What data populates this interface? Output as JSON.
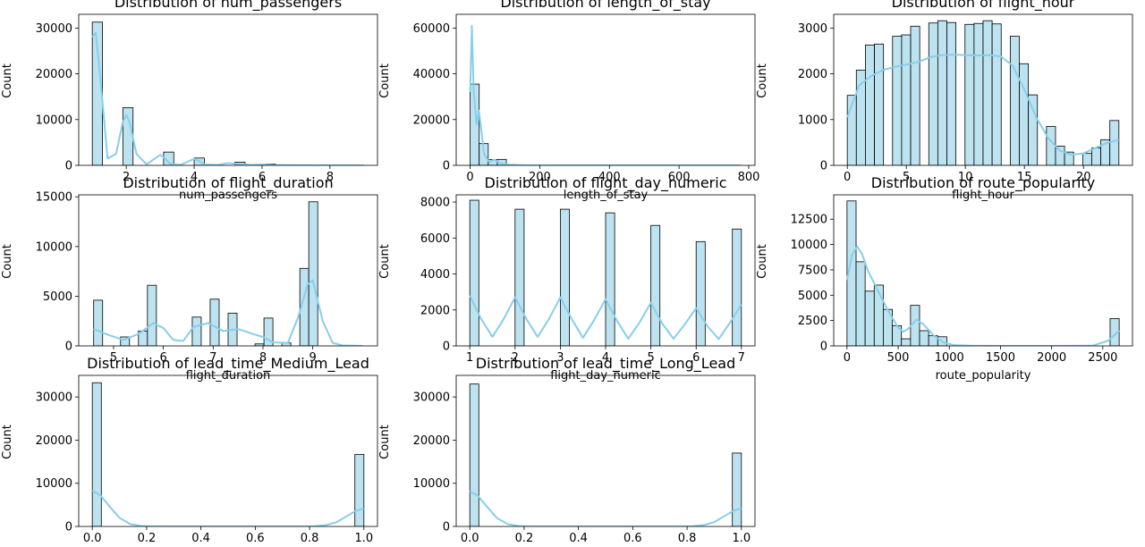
{
  "colors": {
    "bar": "#bde3f0",
    "kde": "#87ceeb",
    "edge": "#000000",
    "axis": "#000000"
  },
  "chart_data": [
    {
      "type": "bar",
      "title": "Distribution of num_passengers",
      "xlabel": "num_passengers",
      "ylabel": "Count",
      "xlim": [
        0.6,
        9.4
      ],
      "ylim": [
        0,
        33000
      ],
      "xticks": [
        2,
        4,
        6,
        8
      ],
      "xtick_labels": [
        "2",
        "4",
        "6",
        "8"
      ],
      "yticks": [
        0,
        10000,
        20000,
        30000
      ],
      "ytick_labels": [
        "0",
        "10000",
        "20000",
        "30000"
      ],
      "bin_edges": [
        1,
        1.3,
        1.6,
        1.9,
        2.2,
        2.5,
        2.8,
        3.1,
        3.4,
        3.7,
        4.0,
        4.3,
        4.6,
        4.9,
        5.2,
        5.5,
        5.8,
        6.1,
        6.4,
        6.7,
        7.0
      ],
      "counts": [
        31300,
        0,
        0,
        12600,
        0,
        0,
        0,
        2900,
        0,
        0,
        1600,
        0,
        0,
        0,
        700,
        0,
        0,
        300,
        0,
        0
      ],
      "kde_x": [
        1,
        1.1,
        1.25,
        1.45,
        1.7,
        1.9,
        2.0,
        2.1,
        2.3,
        2.6,
        2.9,
        3.0,
        3.1,
        3.3,
        3.6,
        3.9,
        4.0,
        4.1,
        4.3,
        4.7,
        5.0,
        5.3,
        5.7,
        6.0,
        6.3,
        6.8,
        7.5,
        8.5,
        9.0
      ],
      "kde_y": [
        28000,
        29000,
        18000,
        1500,
        2500,
        9500,
        11000,
        9500,
        2500,
        200,
        1800,
        2300,
        1800,
        300,
        100,
        1100,
        1400,
        1100,
        200,
        100,
        500,
        300,
        100,
        200,
        100,
        50,
        20,
        10,
        0
      ]
    },
    {
      "type": "bar",
      "title": "Distribution of length_of_stay",
      "xlabel": "length_of_stay",
      "ylabel": "Count",
      "xlim": [
        -40,
        818
      ],
      "ylim": [
        0,
        66000
      ],
      "xticks": [
        0,
        200,
        400,
        600,
        800
      ],
      "xtick_labels": [
        "0",
        "200",
        "400",
        "600",
        "800"
      ],
      "yticks": [
        0,
        20000,
        40000,
        60000
      ],
      "ytick_labels": [
        "0",
        "20000",
        "40000",
        "60000"
      ],
      "bin_edges": [
        0,
        26,
        52,
        78,
        104,
        130
      ],
      "counts": [
        35500,
        9500,
        2500,
        2600,
        400
      ],
      "kde_x": [
        0,
        5,
        10,
        18,
        25,
        30,
        40,
        55,
        70,
        90,
        120,
        160,
        250,
        400,
        600,
        778
      ],
      "kde_y": [
        32000,
        61000,
        33000,
        18000,
        24000,
        18000,
        5000,
        1500,
        2500,
        700,
        200,
        50,
        0,
        0,
        0,
        0
      ]
    },
    {
      "type": "bar",
      "title": "Distribution of flight_hour",
      "xlabel": "flight_hour",
      "ylabel": "Count",
      "xlim": [
        -1.15,
        24.15
      ],
      "ylim": [
        0,
        3300
      ],
      "xticks": [
        0,
        5,
        10,
        15,
        20
      ],
      "xtick_labels": [
        "0",
        "5",
        "10",
        "15",
        "20"
      ],
      "yticks": [
        0,
        1000,
        2000,
        3000
      ],
      "ytick_labels": [
        "0",
        "1000",
        "2000",
        "3000"
      ],
      "bin_edges": [
        0,
        0.7667,
        1.5333,
        2.3,
        3.0667,
        3.8333,
        4.6,
        5.3667,
        6.1333,
        6.9,
        7.6667,
        8.4333,
        9.2,
        9.9667,
        10.7333,
        11.5,
        12.2667,
        13.0333,
        13.8,
        14.5667,
        15.3333,
        16.1,
        16.8667,
        17.6333,
        18.4,
        19.1667,
        19.9333,
        20.7,
        21.4667,
        22.2333,
        23.0
      ],
      "counts": [
        1530,
        2080,
        2630,
        2650,
        0,
        2820,
        2850,
        3040,
        0,
        3110,
        3160,
        3120,
        0,
        3080,
        3100,
        3160,
        3090,
        0,
        2820,
        2220,
        1540,
        0,
        850,
        420,
        290,
        0,
        260,
        380,
        560,
        980
      ],
      "kde_x": [
        0,
        1,
        2,
        3,
        4,
        5,
        6,
        7,
        8,
        9,
        10,
        11,
        12,
        13,
        14,
        15,
        16,
        17,
        18,
        19,
        20,
        21,
        22,
        23
      ],
      "kde_y": [
        1050,
        1750,
        1950,
        2080,
        2150,
        2200,
        2260,
        2360,
        2410,
        2420,
        2410,
        2400,
        2410,
        2380,
        2180,
        1650,
        1050,
        600,
        320,
        230,
        260,
        380,
        490,
        560
      ]
    },
    {
      "type": "bar",
      "title": "Distribution of flight_duration",
      "xlabel": "flight_duration",
      "ylabel": "Count",
      "xlim": [
        4.3,
        10.3
      ],
      "ylim": [
        0,
        15200
      ],
      "xticks": [
        5,
        6,
        7,
        8,
        9
      ],
      "xtick_labels": [
        "5",
        "6",
        "7",
        "8",
        "9"
      ],
      "yticks": [
        0,
        5000,
        10000,
        15000
      ],
      "ytick_labels": [
        "0",
        "5000",
        "10000",
        "15000"
      ],
      "bin_edges": [
        4.6,
        4.78,
        4.96,
        5.14,
        5.32,
        5.5,
        5.68,
        5.86,
        6.04,
        6.22,
        6.4,
        6.58,
        6.76,
        6.94,
        7.12,
        7.3,
        7.48,
        7.66,
        7.84,
        8.02,
        8.2,
        8.38,
        8.56,
        8.74,
        8.92,
        9.1,
        9.28,
        9.46,
        9.64,
        9.82,
        10.0
      ],
      "counts": [
        4600,
        0,
        0,
        900,
        0,
        1500,
        6100,
        0,
        0,
        0,
        0,
        2900,
        0,
        4700,
        0,
        3300,
        0,
        0,
        200,
        2800,
        0,
        300,
        0,
        7800,
        14500,
        0,
        0,
        0,
        0,
        0
      ],
      "kde_x": [
        4.6,
        4.9,
        5.2,
        5.5,
        5.8,
        6.0,
        6.2,
        6.4,
        6.6,
        6.9,
        7.2,
        7.5,
        7.8,
        8.0,
        8.2,
        8.5,
        8.7,
        8.9,
        9.0,
        9.2,
        9.4,
        9.6,
        10.0
      ],
      "kde_y": [
        1700,
        1100,
        600,
        1200,
        2300,
        1800,
        600,
        500,
        1900,
        2300,
        1500,
        1700,
        1200,
        900,
        350,
        300,
        2800,
        6200,
        6600,
        2500,
        300,
        50,
        0
      ]
    },
    {
      "type": "bar",
      "title": "Distribution of flight_day_numeric",
      "xlabel": "flight_day_numeric",
      "ylabel": "Count",
      "xlim": [
        0.7,
        7.3
      ],
      "ylim": [
        0,
        8400
      ],
      "xticks": [
        1,
        2,
        3,
        4,
        5,
        6,
        7
      ],
      "xtick_labels": [
        "1",
        "2",
        "3",
        "4",
        "5",
        "6",
        "7"
      ],
      "yticks": [
        0,
        2000,
        4000,
        6000,
        8000
      ],
      "ytick_labels": [
        "0",
        "2000",
        "4000",
        "6000",
        "8000"
      ],
      "bin_edges": [
        1,
        1.2,
        1.4,
        1.6,
        1.8,
        2.0,
        2.2,
        2.4,
        2.6,
        2.8,
        3.0,
        3.2,
        3.4,
        3.6,
        3.8,
        4.0,
        4.2,
        4.4,
        4.6,
        4.8,
        5.0,
        5.2,
        5.4,
        5.6,
        5.8,
        6.0,
        6.2,
        6.4,
        6.6,
        6.8,
        7.0
      ],
      "counts": [
        8100,
        0,
        0,
        0,
        0,
        7600,
        0,
        0,
        0,
        0,
        7600,
        0,
        0,
        0,
        0,
        7400,
        0,
        0,
        0,
        0,
        6700,
        0,
        0,
        0,
        0,
        5800,
        0,
        0,
        0,
        6500
      ],
      "kde_x": [
        1,
        1.25,
        1.5,
        1.75,
        2.0,
        2.25,
        2.5,
        2.75,
        3.0,
        3.25,
        3.5,
        3.75,
        4.0,
        4.25,
        4.5,
        4.75,
        5.0,
        5.25,
        5.5,
        5.75,
        6.0,
        6.25,
        6.5,
        6.75,
        7.0
      ],
      "kde_y": [
        2800,
        1500,
        500,
        1500,
        2700,
        1500,
        500,
        1500,
        2700,
        1500,
        450,
        1450,
        2600,
        1400,
        400,
        1300,
        2400,
        1250,
        400,
        1200,
        2100,
        1100,
        380,
        1300,
        2300
      ]
    },
    {
      "type": "bar",
      "title": "Distribution of route_popularity",
      "xlabel": "route_popularity",
      "ylabel": "Count",
      "xlim": [
        -130,
        2790
      ],
      "ylim": [
        0,
        14900
      ],
      "xticks": [
        0,
        500,
        1000,
        1500,
        2000,
        2500
      ],
      "xtick_labels": [
        "0",
        "500",
        "1000",
        "1500",
        "2000",
        "2500"
      ],
      "yticks": [
        0,
        2500,
        5000,
        7500,
        10000,
        12500
      ],
      "ytick_labels": [
        "0",
        "2500",
        "5000",
        "7500",
        "10000",
        "12500"
      ],
      "bin_edges": [
        0,
        88.7,
        177.3,
        266,
        354.7,
        443.3,
        532,
        620.7,
        709.3,
        798,
        886.7,
        975.3,
        1064,
        1152.7,
        1241.3,
        1330,
        1418.7,
        1507.3,
        1596,
        1684.7,
        1773.3,
        1862,
        1950.7,
        2039.3,
        2128,
        2216.7,
        2305.3,
        2394,
        2482.7,
        2571.3,
        2660
      ],
      "counts": [
        14300,
        8300,
        5400,
        6000,
        3600,
        2000,
        700,
        4000,
        1500,
        1000,
        900,
        0,
        0,
        0,
        0,
        0,
        0,
        0,
        0,
        0,
        0,
        0,
        0,
        0,
        0,
        0,
        0,
        0,
        0,
        2700
      ],
      "kde_x": [
        0,
        50,
        100,
        150,
        200,
        300,
        400,
        500,
        550,
        600,
        680,
        750,
        850,
        950,
        1050,
        1200,
        1500,
        2000,
        2400,
        2550,
        2660
      ],
      "kde_y": [
        6500,
        9000,
        9800,
        9000,
        7500,
        5500,
        3500,
        1800,
        1400,
        1700,
        2600,
        2100,
        1000,
        300,
        80,
        20,
        0,
        0,
        20,
        500,
        1500
      ]
    },
    {
      "type": "bar",
      "title": "Distribution of lead_time_Medium_Lead",
      "xlabel": "",
      "ylabel": "Count",
      "xlim": [
        -0.05,
        1.05
      ],
      "ylim": [
        0,
        35000
      ],
      "xticks": [
        0,
        0.2,
        0.4,
        0.6,
        0.8,
        1.0
      ],
      "xtick_labels": [
        "0.0",
        "0.2",
        "0.4",
        "0.6",
        "0.8",
        "1.0"
      ],
      "yticks": [
        0,
        10000,
        20000,
        30000
      ],
      "ytick_labels": [
        "0",
        "10000",
        "20000",
        "30000"
      ],
      "bin_edges": [
        0,
        0.0333,
        0.0667,
        0.1,
        0.1333,
        0.1667,
        0.2,
        0.2333,
        0.2667,
        0.3,
        0.3333,
        0.3667,
        0.4,
        0.4333,
        0.4667,
        0.5,
        0.5333,
        0.5667,
        0.6,
        0.6333,
        0.6667,
        0.7,
        0.7333,
        0.7667,
        0.8,
        0.8333,
        0.8667,
        0.9,
        0.9333,
        0.9667,
        1.0
      ],
      "counts": [
        33300,
        0,
        0,
        0,
        0,
        0,
        0,
        0,
        0,
        0,
        0,
        0,
        0,
        0,
        0,
        0,
        0,
        0,
        0,
        0,
        0,
        0,
        0,
        0,
        0,
        0,
        0,
        0,
        0,
        16700
      ],
      "kde_x": [
        0,
        0.03,
        0.06,
        0.1,
        0.14,
        0.18,
        0.22,
        0.3,
        0.5,
        0.7,
        0.78,
        0.82,
        0.86,
        0.9,
        0.94,
        0.97,
        1.0
      ],
      "kde_y": [
        8300,
        7200,
        4900,
        2000,
        550,
        100,
        10,
        0,
        0,
        0,
        10,
        60,
        300,
        1000,
        2500,
        3600,
        4200
      ]
    },
    {
      "type": "bar",
      "title": "Distribution of lead_time_Long_Lead",
      "xlabel": "",
      "ylabel": "Count",
      "xlim": [
        -0.05,
        1.05
      ],
      "ylim": [
        0,
        35000
      ],
      "xticks": [
        0,
        0.2,
        0.4,
        0.6,
        0.8,
        1.0
      ],
      "xtick_labels": [
        "0.0",
        "0.2",
        "0.4",
        "0.6",
        "0.8",
        "1.0"
      ],
      "yticks": [
        0,
        10000,
        20000,
        30000
      ],
      "ytick_labels": [
        "0",
        "10000",
        "20000",
        "30000"
      ],
      "bin_edges": [
        0,
        0.0333,
        0.0667,
        0.1,
        0.1333,
        0.1667,
        0.2,
        0.2333,
        0.2667,
        0.3,
        0.3333,
        0.3667,
        0.4,
        0.4333,
        0.4667,
        0.5,
        0.5333,
        0.5667,
        0.6,
        0.6333,
        0.6667,
        0.7,
        0.7333,
        0.7667,
        0.8,
        0.8333,
        0.8667,
        0.9,
        0.9333,
        0.9667,
        1.0
      ],
      "counts": [
        33000,
        0,
        0,
        0,
        0,
        0,
        0,
        0,
        0,
        0,
        0,
        0,
        0,
        0,
        0,
        0,
        0,
        0,
        0,
        0,
        0,
        0,
        0,
        0,
        0,
        0,
        0,
        0,
        0,
        17000
      ],
      "kde_x": [
        0,
        0.03,
        0.06,
        0.1,
        0.14,
        0.18,
        0.22,
        0.3,
        0.5,
        0.7,
        0.78,
        0.82,
        0.86,
        0.9,
        0.94,
        0.97,
        1.0
      ],
      "kde_y": [
        8200,
        7100,
        4800,
        1950,
        530,
        100,
        10,
        0,
        0,
        0,
        10,
        60,
        300,
        1000,
        2500,
        3600,
        4200
      ]
    }
  ]
}
